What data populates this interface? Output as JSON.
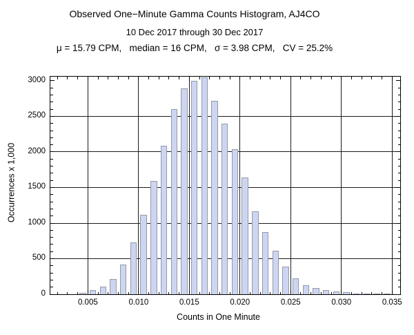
{
  "chart_data": {
    "type": "bar",
    "title": "Observed One−Minute Gamma Counts Histogram, AJ4CO",
    "subtitle": "10 Dec 2017 through 30 Dec 2017",
    "stats_line": "μ = 15.79 CPM,   median = 16 CPM,   σ = 3.98 CPM,   CV = 25.2%",
    "xlabel": "Counts in One Minute",
    "ylabel": "Occurrences x 1,000",
    "xlim": [
      0.0013,
      0.0358
    ],
    "ylim": [
      0,
      3058
    ],
    "grid": true,
    "legend": "none",
    "bin_width": 0.001,
    "bin_starts": [
      0.004,
      0.005,
      0.006,
      0.007,
      0.008,
      0.009,
      0.01,
      0.011,
      0.012,
      0.013,
      0.014,
      0.015,
      0.016,
      0.017,
      0.018,
      0.019,
      0.02,
      0.021,
      0.022,
      0.023,
      0.024,
      0.025,
      0.026,
      0.027,
      0.028,
      0.029,
      0.03,
      0.031,
      0.032,
      0.033,
      0.034
    ],
    "values": [
      20,
      55,
      105,
      210,
      420,
      725,
      1120,
      1590,
      2090,
      2600,
      2890,
      3000,
      3050,
      2720,
      2400,
      2040,
      1640,
      1165,
      875,
      615,
      390,
      220,
      130,
      90,
      60,
      38,
      25,
      12,
      10,
      8,
      6
    ],
    "x_tick_values": [
      0.005,
      0.01,
      0.015,
      0.02,
      0.025,
      0.03,
      0.035
    ],
    "x_tick_labels": [
      "0.005",
      "0.010",
      "0.015",
      "0.020",
      "0.025",
      "0.030",
      "0.035"
    ],
    "x_minor_step": 0.001,
    "y_tick_values": [
      0,
      500,
      1000,
      1500,
      2000,
      2500,
      3000
    ],
    "y_tick_labels": [
      "0",
      "500",
      "1000",
      "1500",
      "2000",
      "2500",
      "3000"
    ],
    "y_minor_step": 100,
    "y_gridline_values": [
      500,
      1000,
      1500,
      2000,
      2500
    ],
    "colors": {
      "bar_fill": "#cdd5f1",
      "bar_edge": "#9199a9",
      "gridline": "#1a1a1a",
      "frame": "#000000",
      "text": "#000000"
    }
  }
}
